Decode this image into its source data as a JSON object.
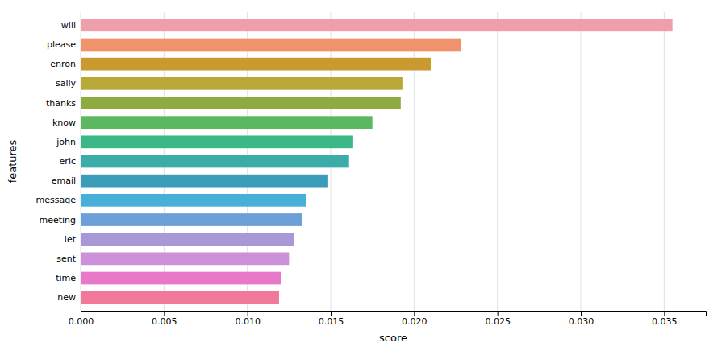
{
  "chart_data": {
    "type": "bar",
    "orientation": "horizontal",
    "categories": [
      "will",
      "please",
      "enron",
      "sally",
      "thanks",
      "know",
      "john",
      "eric",
      "email",
      "message",
      "meeting",
      "let",
      "sent",
      "time",
      "new"
    ],
    "values": [
      0.0355,
      0.0228,
      0.021,
      0.0193,
      0.0192,
      0.0175,
      0.0163,
      0.0161,
      0.0148,
      0.0135,
      0.0133,
      0.0128,
      0.0125,
      0.012,
      0.0119
    ],
    "colors": [
      "#ef9faa",
      "#f0936a",
      "#c99a30",
      "#b8a838",
      "#8faa40",
      "#5cb860",
      "#3cb888",
      "#3aada8",
      "#3a9cb8",
      "#48b0d8",
      "#6a9fd8",
      "#a898d8",
      "#cc90d8",
      "#e878c8",
      "#f07898"
    ],
    "xlabel": "score",
    "ylabel": "features",
    "xlim": [
      0,
      0.0375
    ],
    "xticks": [
      {
        "value": 0.0,
        "label": "0.000"
      },
      0.005,
      {
        "value": 0.01,
        "label": "0.010"
      },
      0.015,
      {
        "value": 0.02,
        "label": "0.020"
      },
      0.025,
      {
        "value": 0.03,
        "label": "0.030"
      },
      0.035
    ],
    "grid": true
  }
}
